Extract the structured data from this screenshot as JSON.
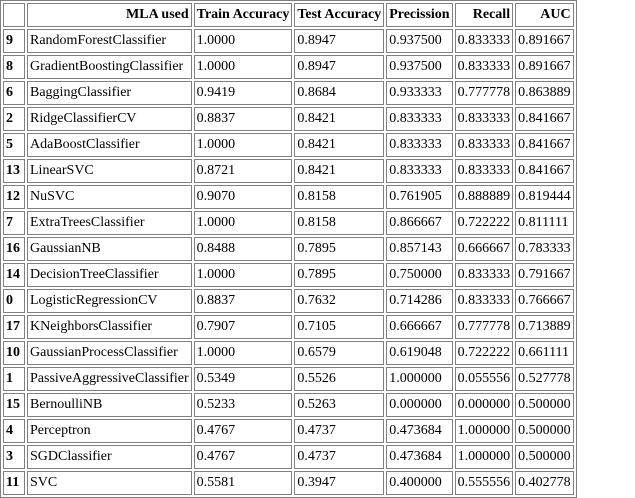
{
  "table": {
    "headers": [
      "",
      "MLA used",
      "Train Accuracy",
      "Test Accuracy",
      "Precission",
      "Recall",
      "AUC"
    ],
    "rows": [
      [
        "9",
        "RandomForestClassifier",
        "1.0000",
        "0.8947",
        "0.937500",
        "0.833333",
        "0.891667"
      ],
      [
        "8",
        "GradientBoostingClassifier",
        "1.0000",
        "0.8947",
        "0.937500",
        "0.833333",
        "0.891667"
      ],
      [
        "6",
        "BaggingClassifier",
        "0.9419",
        "0.8684",
        "0.933333",
        "0.777778",
        "0.863889"
      ],
      [
        "2",
        "RidgeClassifierCV",
        "0.8837",
        "0.8421",
        "0.833333",
        "0.833333",
        "0.841667"
      ],
      [
        "5",
        "AdaBoostClassifier",
        "1.0000",
        "0.8421",
        "0.833333",
        "0.833333",
        "0.841667"
      ],
      [
        "13",
        "LinearSVC",
        "0.8721",
        "0.8421",
        "0.833333",
        "0.833333",
        "0.841667"
      ],
      [
        "12",
        "NuSVC",
        "0.9070",
        "0.8158",
        "0.761905",
        "0.888889",
        "0.819444"
      ],
      [
        "7",
        "ExtraTreesClassifier",
        "1.0000",
        "0.8158",
        "0.866667",
        "0.722222",
        "0.811111"
      ],
      [
        "16",
        "GaussianNB",
        "0.8488",
        "0.7895",
        "0.857143",
        "0.666667",
        "0.783333"
      ],
      [
        "14",
        "DecisionTreeClassifier",
        "1.0000",
        "0.7895",
        "0.750000",
        "0.833333",
        "0.791667"
      ],
      [
        "0",
        "LogisticRegressionCV",
        "0.8837",
        "0.7632",
        "0.714286",
        "0.833333",
        "0.766667"
      ],
      [
        "17",
        "KNeighborsClassifier",
        "0.7907",
        "0.7105",
        "0.666667",
        "0.777778",
        "0.713889"
      ],
      [
        "10",
        "GaussianProcessClassifier",
        "1.0000",
        "0.6579",
        "0.619048",
        "0.722222",
        "0.661111"
      ],
      [
        "1",
        "PassiveAggressiveClassifier",
        "0.5349",
        "0.5526",
        "1.000000",
        "0.055556",
        "0.527778"
      ],
      [
        "15",
        "BernoulliNB",
        "0.5233",
        "0.5263",
        "0.000000",
        "0.000000",
        "0.500000"
      ],
      [
        "4",
        "Perceptron",
        "0.4767",
        "0.4737",
        "0.473684",
        "1.000000",
        "0.500000"
      ],
      [
        "3",
        "SGDClassifier",
        "0.4767",
        "0.4737",
        "0.473684",
        "1.000000",
        "0.500000"
      ],
      [
        "11",
        "SVC",
        "0.5581",
        "0.3947",
        "0.400000",
        "0.555556",
        "0.402778"
      ]
    ]
  }
}
